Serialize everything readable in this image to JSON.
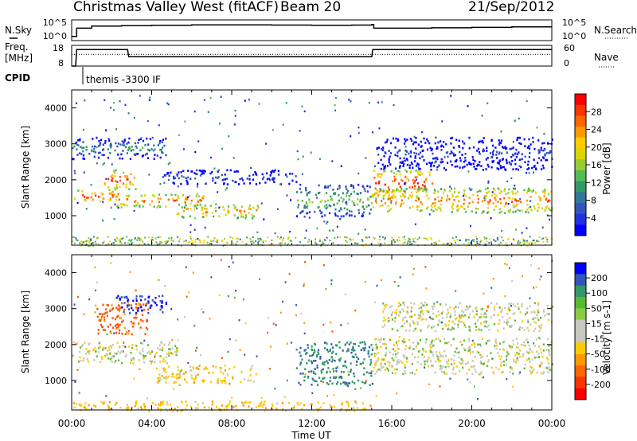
{
  "header": {
    "station": "Christmas Valley West (fitACF)",
    "beam": "Beam 20",
    "date": "21/Sep/2012"
  },
  "side_labels": {
    "nsky": "N.Sky",
    "nsearch": "N.Search",
    "freq_line1": "Freq.",
    "freq_line2": "[MHz]",
    "nave": "Nave",
    "cpid": "CPID",
    "cpid_value": "themis -3300 IF"
  },
  "chart_data": [
    {
      "type": "line",
      "panel": "noise",
      "left_ticks": [
        "10^5",
        "10^0"
      ],
      "right_ticks": [
        "10^5",
        "10^0"
      ],
      "series": [
        {
          "name": "N.Sky",
          "x_hours": [
            0,
            0.2,
            0.25,
            1.0,
            2.5,
            4,
            6,
            8,
            10,
            12,
            14,
            15,
            15.1,
            18,
            20,
            22,
            24
          ],
          "y_frac": [
            0.2,
            0.2,
            0.6,
            0.7,
            0.72,
            0.74,
            0.76,
            0.76,
            0.75,
            0.74,
            0.75,
            0.78,
            0.6,
            0.62,
            0.64,
            0.66,
            0.66
          ]
        }
      ]
    },
    {
      "type": "line",
      "panel": "frequency",
      "left_ticks": [
        "18",
        "8"
      ],
      "right_ticks": [
        "60",
        "0"
      ],
      "series": [
        {
          "name": "Freq.",
          "x_hours": [
            0,
            0.2,
            0.25,
            2.8,
            2.85,
            15.0,
            15.05,
            24
          ],
          "y_mhz": [
            8,
            8,
            16,
            16,
            12.5,
            12.5,
            16,
            16
          ]
        },
        {
          "name": "Nave",
          "x_hours": [
            0,
            24
          ],
          "y": [
            34,
            34
          ]
        }
      ]
    },
    {
      "type": "heatmap",
      "panel": "power",
      "ylabel": "Slant Range [km]",
      "y_ticks": [
        1000,
        2000,
        3000,
        4000
      ],
      "ylim": [
        180,
        4500
      ],
      "x_ticks": [
        "00:00",
        "04:00",
        "08:00",
        "12:00",
        "16:00",
        "20:00",
        "00:00"
      ],
      "xlim_hours": [
        0,
        24
      ],
      "colorbar": {
        "label": "Power [dB]",
        "ticks": [
          "28",
          "24",
          "20",
          "16",
          "12",
          "8",
          "4"
        ],
        "colors": [
          "#ff0000",
          "#ff3300",
          "#ff6600",
          "#ff9900",
          "#ffcc00",
          "#d8d800",
          "#99cc33",
          "#55bb55",
          "#339966",
          "#337799",
          "#3355bb",
          "#2233dd",
          "#0000ff"
        ]
      },
      "features": [
        {
          "x0": 0.1,
          "x1": 2.3,
          "r0": 1400,
          "r1": 1750,
          "level": 0.92
        },
        {
          "x0": 1.6,
          "x1": 3.2,
          "r0": 1750,
          "r1": 2300,
          "level": 0.88
        },
        {
          "x0": 2.2,
          "x1": 6.6,
          "r0": 1250,
          "r1": 1650,
          "level": 0.85
        },
        {
          "x0": 5.2,
          "x1": 9.3,
          "r0": 950,
          "r1": 1350,
          "level": 0.8
        },
        {
          "x0": 0.0,
          "x1": 4.8,
          "r0": 2600,
          "r1": 3200,
          "level": 0.35
        },
        {
          "x0": 4.5,
          "x1": 11.2,
          "r0": 1900,
          "r1": 2300,
          "level": 0.2
        },
        {
          "x0": 11.2,
          "x1": 15.0,
          "r0": 1000,
          "r1": 1900,
          "level": 0.5
        },
        {
          "x0": 15.0,
          "x1": 18.0,
          "r0": 1500,
          "r1": 2300,
          "level": 0.95
        },
        {
          "x0": 15.0,
          "x1": 24.0,
          "r0": 1100,
          "r1": 1800,
          "level": 0.85
        },
        {
          "x0": 15.2,
          "x1": 24.0,
          "r0": 2300,
          "r1": 3200,
          "level": 0.12
        }
      ]
    },
    {
      "type": "heatmap",
      "panel": "velocity",
      "ylabel": "Slant Range [km]",
      "y_ticks": [
        1000,
        2000,
        3000,
        4000
      ],
      "ylim": [
        180,
        4500
      ],
      "x_ticks": [
        "00:00",
        "04:00",
        "08:00",
        "12:00",
        "16:00",
        "20:00",
        "00:00"
      ],
      "xlim_hours": [
        0,
        24
      ],
      "xlabel": "Time UT",
      "colorbar": {
        "label": "Velocity [m s-1]",
        "ticks": [
          "200",
          "100",
          "50",
          "15",
          "-15",
          "-50",
          "-100",
          "-200"
        ],
        "colors": [
          "#0000ff",
          "#3355bb",
          "#339966",
          "#55bb33",
          "#88cc44",
          "#c8c8c0",
          "#c8c8c0",
          "#ffcc00",
          "#ff9900",
          "#ff6600",
          "#ff3300",
          "#ff0000"
        ]
      },
      "features": [
        {
          "x0": 0.0,
          "x1": 5.3,
          "r0": 1500,
          "r1": 2100,
          "v": 0
        },
        {
          "x0": 4.2,
          "x1": 9.2,
          "r0": 950,
          "r1": 1450,
          "v": -30
        },
        {
          "x0": 1.2,
          "x1": 3.8,
          "r0": 2300,
          "r1": 3200,
          "v": -120
        },
        {
          "x0": 2.2,
          "x1": 5.0,
          "r0": 2900,
          "r1": 3400,
          "v": 150
        },
        {
          "x0": 11.2,
          "x1": 15.0,
          "r0": 900,
          "r1": 2100,
          "v": 60
        },
        {
          "x0": 15.0,
          "x1": 24.0,
          "r0": 1200,
          "r1": 2200,
          "v": 0
        },
        {
          "x0": 15.5,
          "x1": 24.0,
          "r0": 2400,
          "r1": 3200,
          "v": 0
        },
        {
          "x0": 0.0,
          "x1": 15.0,
          "r0": 180,
          "r1": 450,
          "v": -40
        }
      ]
    }
  ]
}
